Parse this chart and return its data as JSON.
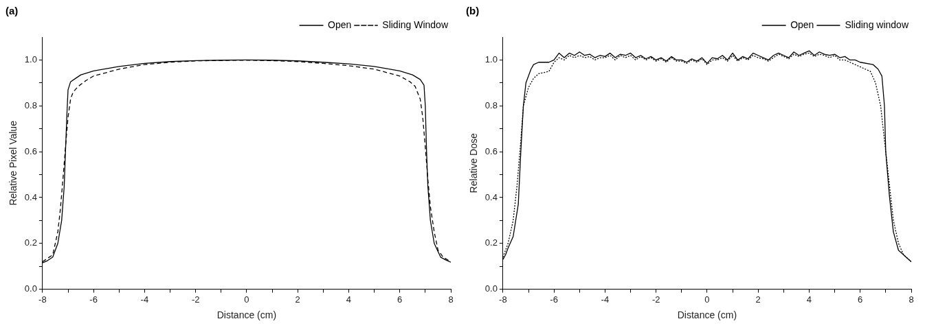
{
  "chart_data": [
    {
      "type": "line",
      "title": "(a)",
      "xlabel": "Distance (cm)",
      "ylabel": "Relative Pixel Value",
      "xlim": [
        -8,
        8
      ],
      "xticks": [
        -8,
        {
          "value": -7,
          "label": null
        },
        -6,
        {
          "value": -5,
          "label": null
        },
        -4,
        {
          "value": -3,
          "label": null
        },
        -2,
        {
          "value": -1,
          "label": null
        },
        0,
        {
          "value": 1,
          "label": null
        },
        2,
        {
          "value": 3,
          "label": null
        },
        4,
        {
          "value": 5,
          "label": null
        },
        6,
        {
          "value": 7,
          "label": null
        },
        8
      ],
      "ylim": [
        0,
        1.1
      ],
      "yticks": [
        {
          "value": 0,
          "label": "0.0"
        },
        {
          "value": 0.1,
          "label": null
        },
        0.2,
        {
          "value": 0.3,
          "label": null
        },
        0.4,
        {
          "value": 0.5,
          "label": null
        },
        0.6,
        {
          "value": 0.7,
          "label": null
        },
        0.8,
        {
          "value": 0.9,
          "label": null
        },
        {
          "value": 1,
          "label": "1.0"
        }
      ],
      "grid": false,
      "legend": "top right",
      "marker": "none",
      "series": [
        {
          "name": "Open",
          "color": "#000000",
          "line_style": "solid",
          "x": [
            -8,
            -7.8,
            -7.6,
            -7.4,
            -7.25,
            -7.15,
            -7.1,
            -7.05,
            -7.0,
            -6.9,
            -6.7,
            -6.5,
            -6,
            -5,
            -4,
            -3,
            -2,
            -1,
            0,
            1,
            2,
            3,
            4,
            5,
            6,
            6.5,
            6.8,
            6.95,
            7.0,
            7.05,
            7.1,
            7.2,
            7.35,
            7.6,
            7.8,
            8
          ],
          "values": [
            0.115,
            0.125,
            0.14,
            0.2,
            0.3,
            0.45,
            0.6,
            0.75,
            0.87,
            0.905,
            0.92,
            0.935,
            0.952,
            0.972,
            0.985,
            0.993,
            0.997,
            0.999,
            1.0,
            0.999,
            0.996,
            0.99,
            0.983,
            0.972,
            0.952,
            0.935,
            0.915,
            0.89,
            0.8,
            0.6,
            0.45,
            0.3,
            0.2,
            0.14,
            0.128,
            0.118
          ]
        },
        {
          "name": "Sliding Window",
          "color": "#000000",
          "line_style": "dashed",
          "x": [
            -8,
            -7.6,
            -7.4,
            -7.3,
            -7.2,
            -7.1,
            -7.0,
            -6.9,
            -6.8,
            -6.6,
            -6.3,
            -6,
            -5,
            -4,
            -3,
            -2,
            -1,
            0,
            1,
            2,
            3,
            4,
            5,
            6,
            6.4,
            6.6,
            6.8,
            6.9,
            7.0,
            7.1,
            7.2,
            7.35,
            7.5,
            7.7,
            8
          ],
          "values": [
            0.12,
            0.15,
            0.25,
            0.35,
            0.48,
            0.62,
            0.75,
            0.83,
            0.86,
            0.885,
            0.91,
            0.93,
            0.96,
            0.98,
            0.99,
            0.996,
            0.998,
            0.999,
            0.997,
            0.993,
            0.985,
            0.975,
            0.96,
            0.93,
            0.905,
            0.885,
            0.83,
            0.75,
            0.62,
            0.48,
            0.36,
            0.25,
            0.17,
            0.14,
            0.12
          ]
        }
      ]
    },
    {
      "type": "line",
      "title": "(b)",
      "xlabel": "Distance (cm)",
      "ylabel": "Relative Dose",
      "xlim": [
        -8,
        8
      ],
      "xticks": [
        -8,
        {
          "value": -7,
          "label": null
        },
        -6,
        {
          "value": -5,
          "label": null
        },
        -4,
        {
          "value": -3,
          "label": null
        },
        -2,
        {
          "value": -1,
          "label": null
        },
        0,
        {
          "value": 1,
          "label": null
        },
        2,
        {
          "value": 3,
          "label": null
        },
        4,
        {
          "value": 5,
          "label": null
        },
        6,
        {
          "value": 7,
          "label": null
        },
        8
      ],
      "ylim": [
        0,
        1.1
      ],
      "yticks": [
        {
          "value": 0,
          "label": "0.0"
        },
        {
          "value": 0.1,
          "label": null
        },
        0.2,
        {
          "value": 0.3,
          "label": null
        },
        0.4,
        {
          "value": 0.5,
          "label": null
        },
        0.6,
        {
          "value": 0.7,
          "label": null
        },
        0.8,
        {
          "value": 0.9,
          "label": null
        },
        {
          "value": 1,
          "label": "1.0"
        }
      ],
      "grid": false,
      "legend": "top right",
      "marker": "none",
      "series": [
        {
          "name": "Open",
          "color": "#000000",
          "line_style": "solid",
          "x": [
            -8,
            -7.9,
            -7.8,
            -7.6,
            -7.4,
            -7.3,
            -7.2,
            -7.1,
            -7.0,
            -6.9,
            -6.8,
            -6.6,
            -6.2,
            -6,
            -5.8,
            -5.6,
            -5.4,
            -5.2,
            -5,
            -4.8,
            -4.6,
            -4.4,
            -4.2,
            -4,
            -3.8,
            -3.6,
            -3.4,
            -3.2,
            -3,
            -2.8,
            -2.6,
            -2.4,
            -2.2,
            -2,
            -1.8,
            -1.6,
            -1.4,
            -1.2,
            -1,
            -0.8,
            -0.6,
            -0.4,
            -0.2,
            0,
            0.2,
            0.4,
            0.6,
            0.8,
            1,
            1.2,
            1.4,
            1.6,
            1.8,
            2,
            2.2,
            2.4,
            2.6,
            2.8,
            3,
            3.2,
            3.4,
            3.6,
            3.8,
            4,
            4.2,
            4.4,
            4.6,
            4.8,
            5,
            5.2,
            5.4,
            5.6,
            5.8,
            6,
            6.5,
            6.7,
            6.85,
            6.95,
            7.0,
            7.15,
            7.3,
            7.5,
            7.7,
            7.9,
            8
          ],
          "values": [
            0.13,
            0.15,
            0.18,
            0.23,
            0.37,
            0.6,
            0.8,
            0.9,
            0.93,
            0.96,
            0.98,
            0.99,
            0.99,
            1.0,
            1.03,
            1.01,
            1.03,
            1.02,
            1.035,
            1.02,
            1.025,
            1.01,
            1.02,
            1.015,
            1.03,
            1.01,
            1.025,
            1.02,
            1.03,
            1.01,
            1.02,
            1.005,
            1.015,
            1.0,
            1.01,
            0.995,
            1.015,
            1.0,
            1.0,
            0.99,
            1.005,
            0.995,
            1.01,
            0.985,
            1.01,
            1.005,
            1.02,
            1.0,
            1.03,
            1.0,
            1.015,
            1.005,
            1.03,
            1.02,
            1.01,
            1.0,
            1.02,
            1.03,
            1.02,
            1.01,
            1.035,
            1.02,
            1.03,
            1.04,
            1.02,
            1.035,
            1.025,
            1.02,
            1.025,
            1.01,
            1.015,
            1.0,
            1.0,
            0.99,
            0.98,
            0.96,
            0.93,
            0.8,
            0.6,
            0.4,
            0.25,
            0.17,
            0.15,
            0.13,
            0.12
          ]
        },
        {
          "name": "Sliding window",
          "color": "#000000",
          "line_style": "dotted",
          "x": [
            -8,
            -7.8,
            -7.6,
            -7.45,
            -7.3,
            -7.2,
            -7.0,
            -6.8,
            -6.6,
            -6.2,
            -6,
            -5.8,
            -5.6,
            -5.4,
            -5.2,
            -5,
            -4.8,
            -4.6,
            -4.4,
            -4.2,
            -4,
            -3.8,
            -3.6,
            -3.4,
            -3.2,
            -3,
            -2.8,
            -2.6,
            -2.4,
            -2.2,
            -2,
            -1.8,
            -1.6,
            -1.4,
            -1.2,
            -1,
            -0.8,
            -0.6,
            -0.4,
            -0.2,
            0,
            0.2,
            0.4,
            0.6,
            0.8,
            1,
            1.2,
            1.4,
            1.6,
            1.8,
            2,
            2.2,
            2.4,
            2.6,
            2.8,
            3,
            3.2,
            3.4,
            3.6,
            3.8,
            4,
            4.2,
            4.4,
            4.6,
            4.8,
            5,
            5.2,
            5.4,
            5.6,
            5.8,
            6,
            6.4,
            6.6,
            6.8,
            7.0,
            7.15,
            7.3,
            7.5,
            7.7,
            8
          ],
          "values": [
            0.14,
            0.2,
            0.3,
            0.45,
            0.65,
            0.8,
            0.88,
            0.92,
            0.94,
            0.95,
            0.99,
            1.01,
            1.0,
            1.02,
            1.01,
            1.02,
            1.01,
            1.015,
            1.0,
            1.01,
            1.01,
            1.02,
            1.0,
            1.02,
            1.01,
            1.02,
            1.0,
            1.015,
            1.0,
            1.01,
            0.995,
            1.005,
            0.99,
            1.01,
            0.995,
            0.995,
            0.985,
            1.0,
            0.99,
            1.005,
            0.98,
            1.0,
            1.0,
            1.01,
            0.995,
            1.02,
            0.995,
            1.01,
            1.0,
            1.02,
            1.01,
            1.005,
            0.995,
            1.01,
            1.025,
            1.015,
            1.005,
            1.025,
            1.015,
            1.025,
            1.03,
            1.015,
            1.025,
            1.02,
            1.01,
            1.02,
            1.0,
            1.0,
            0.99,
            0.98,
            0.97,
            0.95,
            0.9,
            0.8,
            0.6,
            0.45,
            0.3,
            0.2,
            0.15,
            0.12
          ]
        }
      ]
    }
  ]
}
